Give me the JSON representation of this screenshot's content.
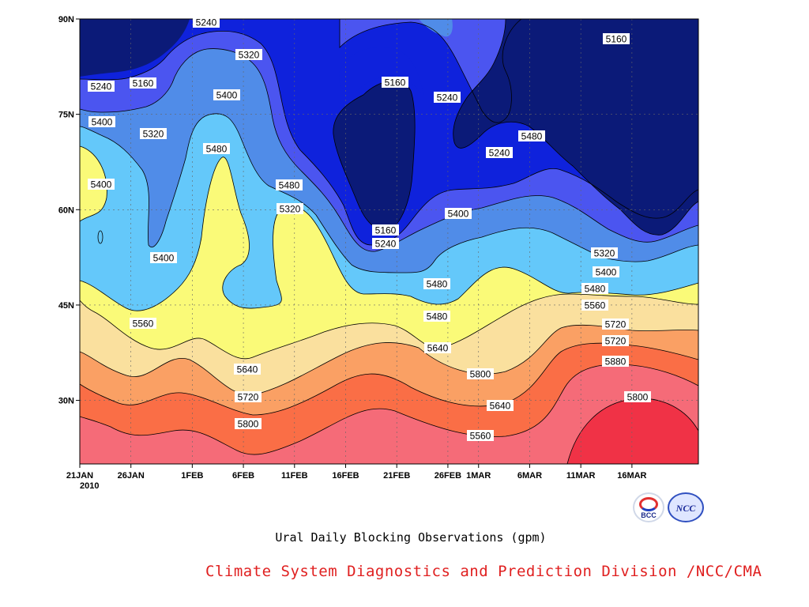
{
  "chart_data": {
    "type": "heatmap",
    "title": "Ural Daily Blocking Observations (gpm)",
    "xlabel": "",
    "ylabel": "",
    "x_tick_labels": [
      "21JAN",
      "26JAN",
      "1FEB",
      "6FEB",
      "11FEB",
      "16FEB",
      "21FEB",
      "26FEB",
      "1MAR",
      "6MAR",
      "11MAR",
      "16MAR"
    ],
    "x_year_label": "2010",
    "y_tick_labels": [
      "90N",
      "75N",
      "60N",
      "45N",
      "30N"
    ],
    "x_range": [
      "21JAN2010",
      "22MAR2010"
    ],
    "y_range": [
      20,
      90
    ],
    "grid": true,
    "contour_levels": [
      5160,
      5240,
      5320,
      5400,
      5480,
      5560,
      5640,
      5720,
      5800,
      5880
    ],
    "fill_colors": [
      "#0b1a78",
      "#0f22dc",
      "#4b55f0",
      "#508ce8",
      "#64c8fa",
      "#fafa78",
      "#fae09e",
      "#faa064",
      "#fa6e46",
      "#f56b78",
      "#f03246"
    ],
    "contour_labels": [
      {
        "text": "5240"
      },
      {
        "text": "5320"
      },
      {
        "text": "5160"
      },
      {
        "text": "5240"
      },
      {
        "text": "5400"
      },
      {
        "text": "5160"
      },
      {
        "text": "5240"
      },
      {
        "text": "5400"
      },
      {
        "text": "5320"
      },
      {
        "text": "5480"
      },
      {
        "text": "5160"
      },
      {
        "text": "5240"
      },
      {
        "text": "5480"
      },
      {
        "text": "5400"
      },
      {
        "text": "5480"
      },
      {
        "text": "5320"
      },
      {
        "text": "5160"
      },
      {
        "text": "5240"
      },
      {
        "text": "5400"
      },
      {
        "text": "5400"
      },
      {
        "text": "5480"
      },
      {
        "text": "5320"
      },
      {
        "text": "5400"
      },
      {
        "text": "5480"
      },
      {
        "text": "5560"
      },
      {
        "text": "5480"
      },
      {
        "text": "5560"
      },
      {
        "text": "5640"
      },
      {
        "text": "5640"
      },
      {
        "text": "5720"
      },
      {
        "text": "5800"
      },
      {
        "text": "5720"
      },
      {
        "text": "5640"
      },
      {
        "text": "5720"
      },
      {
        "text": "5800"
      },
      {
        "text": "5880"
      },
      {
        "text": "5800"
      },
      {
        "text": "5560"
      }
    ]
  },
  "footer": {
    "subtitle": "Ural Daily Blocking Observations (gpm)",
    "credit": "Climate System Diagnostics and Prediction Division /NCC/CMA"
  },
  "logos": {
    "bcc": "BCC",
    "ncc": "NCC"
  }
}
